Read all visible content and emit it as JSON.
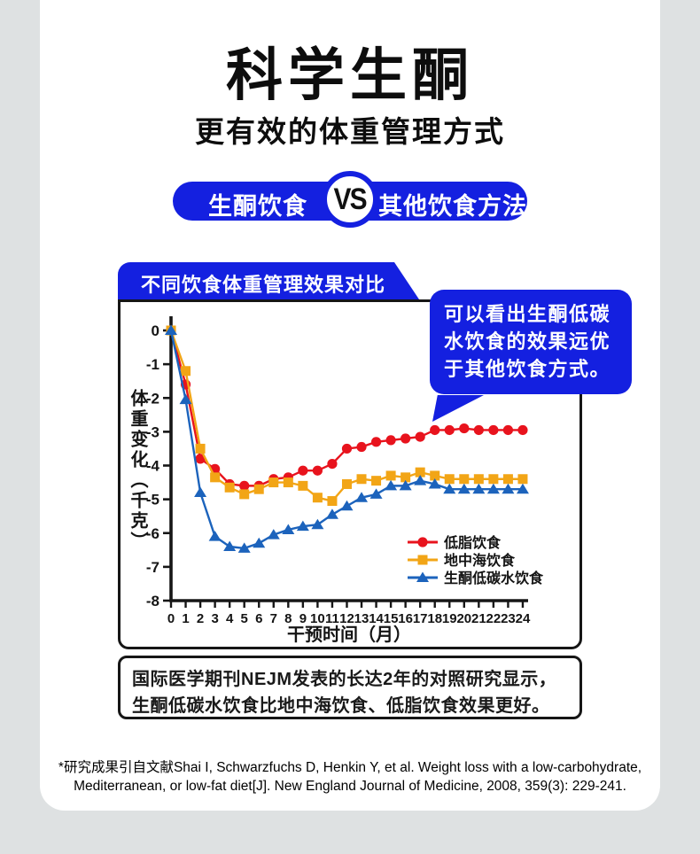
{
  "theme": {
    "accent_blue": "#1420e0",
    "background_gray": "#dee1e2",
    "red": "#e8131d",
    "orange": "#f2a516",
    "series_blue": "#1c63bc"
  },
  "header": {
    "title": "科学生酮",
    "subtitle": "更有效的体重管理方式"
  },
  "vs_banner": {
    "left": "生酮饮食",
    "vs": "VS",
    "right": "其他饮食方法"
  },
  "panel": {
    "tab_label": "不同饮食体重管理效果对比"
  },
  "callout": {
    "text": "可以看出生酮低碳水饮食的效果远优于其他饮食方式。"
  },
  "summary": {
    "text": "国际医学期刊NEJM发表的长达2年的对照研究显示，生酮低碳水饮食比地中海饮食、低脂饮食效果更好。"
  },
  "footnote": {
    "line1": "*研究成果引自文献Shai I, Schwarzfuchs D, Henkin Y, et al. Weight loss with a low-carbohydrate,",
    "line2": "Mediterranean, or low-fat diet[J]. New England Journal of Medicine, 2008, 359(3): 229-241."
  },
  "chart_data": {
    "type": "line",
    "title": "不同饮食体重管理效果对比",
    "xlabel": "干预时间（月）",
    "ylabel": "体重变化（千克）",
    "x": [
      0,
      1,
      2,
      3,
      4,
      5,
      6,
      7,
      8,
      9,
      10,
      11,
      12,
      13,
      14,
      15,
      16,
      17,
      18,
      19,
      20,
      21,
      22,
      23,
      24
    ],
    "ylim": [
      -8,
      0
    ],
    "yticks": [
      0,
      -1,
      -2,
      -3,
      -4,
      -5,
      -6,
      -7,
      -8
    ],
    "grid": false,
    "legend_position": "inside-lower-right",
    "series": [
      {
        "name": "低脂饮食",
        "marker": "circle",
        "color": "#e8131d",
        "values": [
          0,
          -1.6,
          -3.8,
          -4.1,
          -4.55,
          -4.6,
          -4.6,
          -4.4,
          -4.35,
          -4.15,
          -4.15,
          -3.95,
          -3.5,
          -3.45,
          -3.3,
          -3.25,
          -3.2,
          -3.15,
          -2.95,
          -2.95,
          -2.9,
          -2.95,
          -2.95,
          -2.95,
          -2.95
        ]
      },
      {
        "name": "地中海饮食",
        "marker": "square",
        "color": "#f2a516",
        "values": [
          0,
          -1.2,
          -3.5,
          -4.35,
          -4.65,
          -4.85,
          -4.7,
          -4.5,
          -4.5,
          -4.6,
          -4.95,
          -5.05,
          -4.55,
          -4.4,
          -4.45,
          -4.3,
          -4.35,
          -4.2,
          -4.3,
          -4.4,
          -4.4,
          -4.4,
          -4.4,
          -4.4,
          -4.4
        ]
      },
      {
        "name": "生酮低碳水饮食",
        "marker": "triangle",
        "color": "#1c63bc",
        "values": [
          0,
          -2.05,
          -4.8,
          -6.1,
          -6.4,
          -6.45,
          -6.3,
          -6.05,
          -5.9,
          -5.8,
          -5.75,
          -5.45,
          -5.2,
          -4.95,
          -4.85,
          -4.6,
          -4.6,
          -4.45,
          -4.55,
          -4.7,
          -4.7,
          -4.7,
          -4.7,
          -4.7,
          -4.7
        ]
      }
    ]
  }
}
